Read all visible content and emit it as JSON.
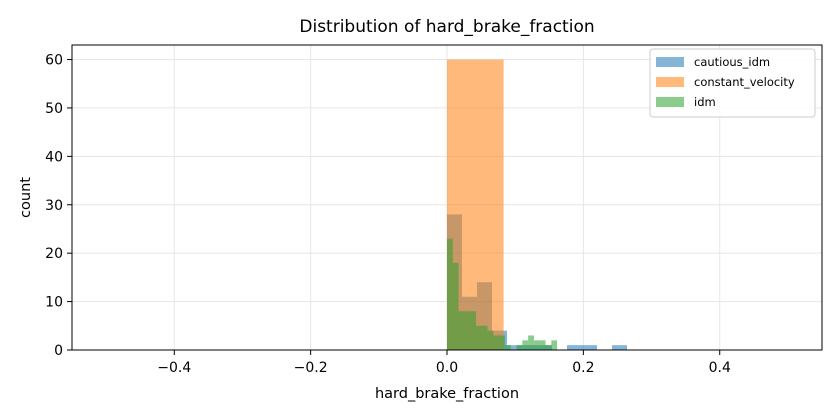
{
  "chart_data": {
    "type": "histogram",
    "title": "Distribution of hard_brake_fraction",
    "xlabel": "hard_brake_fraction",
    "ylabel": "count",
    "xlim": [
      -0.55,
      0.55
    ],
    "ylim": [
      0,
      63
    ],
    "xticks": [
      -0.4,
      -0.2,
      0.0,
      0.2,
      0.4
    ],
    "xtick_labels": [
      "−0.4",
      "−0.2",
      "0.0",
      "0.2",
      "0.4"
    ],
    "yticks": [
      0,
      10,
      20,
      30,
      40,
      50,
      60
    ],
    "ytick_labels": [
      "0",
      "10",
      "20",
      "30",
      "40",
      "50",
      "60"
    ],
    "grid": true,
    "legend_position": "top-right",
    "series": [
      {
        "name": "cautious_idm",
        "color": "#1f77b4",
        "bins": [
          {
            "x0": 0.0,
            "x1": 0.022,
            "count": 28
          },
          {
            "x0": 0.022,
            "x1": 0.044,
            "count": 11
          },
          {
            "x0": 0.044,
            "x1": 0.066,
            "count": 14
          },
          {
            "x0": 0.066,
            "x1": 0.088,
            "count": 4
          },
          {
            "x0": 0.088,
            "x1": 0.11,
            "count": 1
          },
          {
            "x0": 0.11,
            "x1": 0.132,
            "count": 1
          },
          {
            "x0": 0.132,
            "x1": 0.154,
            "count": 1
          },
          {
            "x0": 0.154,
            "x1": 0.176,
            "count": 0
          },
          {
            "x0": 0.176,
            "x1": 0.198,
            "count": 1
          },
          {
            "x0": 0.198,
            "x1": 0.22,
            "count": 1
          },
          {
            "x0": 0.22,
            "x1": 0.242,
            "count": 0
          },
          {
            "x0": 0.242,
            "x1": 0.264,
            "count": 1
          }
        ]
      },
      {
        "name": "constant_velocity",
        "color": "#ff7f0e",
        "bins": [
          {
            "x0": 0.0,
            "x1": 0.083,
            "count": 60
          }
        ]
      },
      {
        "name": "idm",
        "color": "#2ca02c",
        "bins": [
          {
            "x0": 0.0,
            "x1": 0.0085,
            "count": 23
          },
          {
            "x0": 0.0085,
            "x1": 0.017,
            "count": 18
          },
          {
            "x0": 0.017,
            "x1": 0.0255,
            "count": 8
          },
          {
            "x0": 0.0255,
            "x1": 0.034,
            "count": 8
          },
          {
            "x0": 0.034,
            "x1": 0.0425,
            "count": 8
          },
          {
            "x0": 0.0425,
            "x1": 0.051,
            "count": 5
          },
          {
            "x0": 0.051,
            "x1": 0.0595,
            "count": 5
          },
          {
            "x0": 0.0595,
            "x1": 0.068,
            "count": 4
          },
          {
            "x0": 0.068,
            "x1": 0.0765,
            "count": 3
          },
          {
            "x0": 0.0765,
            "x1": 0.085,
            "count": 3
          },
          {
            "x0": 0.085,
            "x1": 0.0935,
            "count": 1
          },
          {
            "x0": 0.0935,
            "x1": 0.102,
            "count": 0
          },
          {
            "x0": 0.102,
            "x1": 0.1105,
            "count": 1
          },
          {
            "x0": 0.1105,
            "x1": 0.119,
            "count": 2
          },
          {
            "x0": 0.119,
            "x1": 0.1275,
            "count": 3
          },
          {
            "x0": 0.1275,
            "x1": 0.136,
            "count": 2
          },
          {
            "x0": 0.136,
            "x1": 0.1445,
            "count": 2
          },
          {
            "x0": 0.1445,
            "x1": 0.153,
            "count": 1
          },
          {
            "x0": 0.153,
            "x1": 0.1615,
            "count": 2
          },
          {
            "x0": 0.1615,
            "x1": 0.17,
            "count": 0
          }
        ]
      }
    ]
  }
}
